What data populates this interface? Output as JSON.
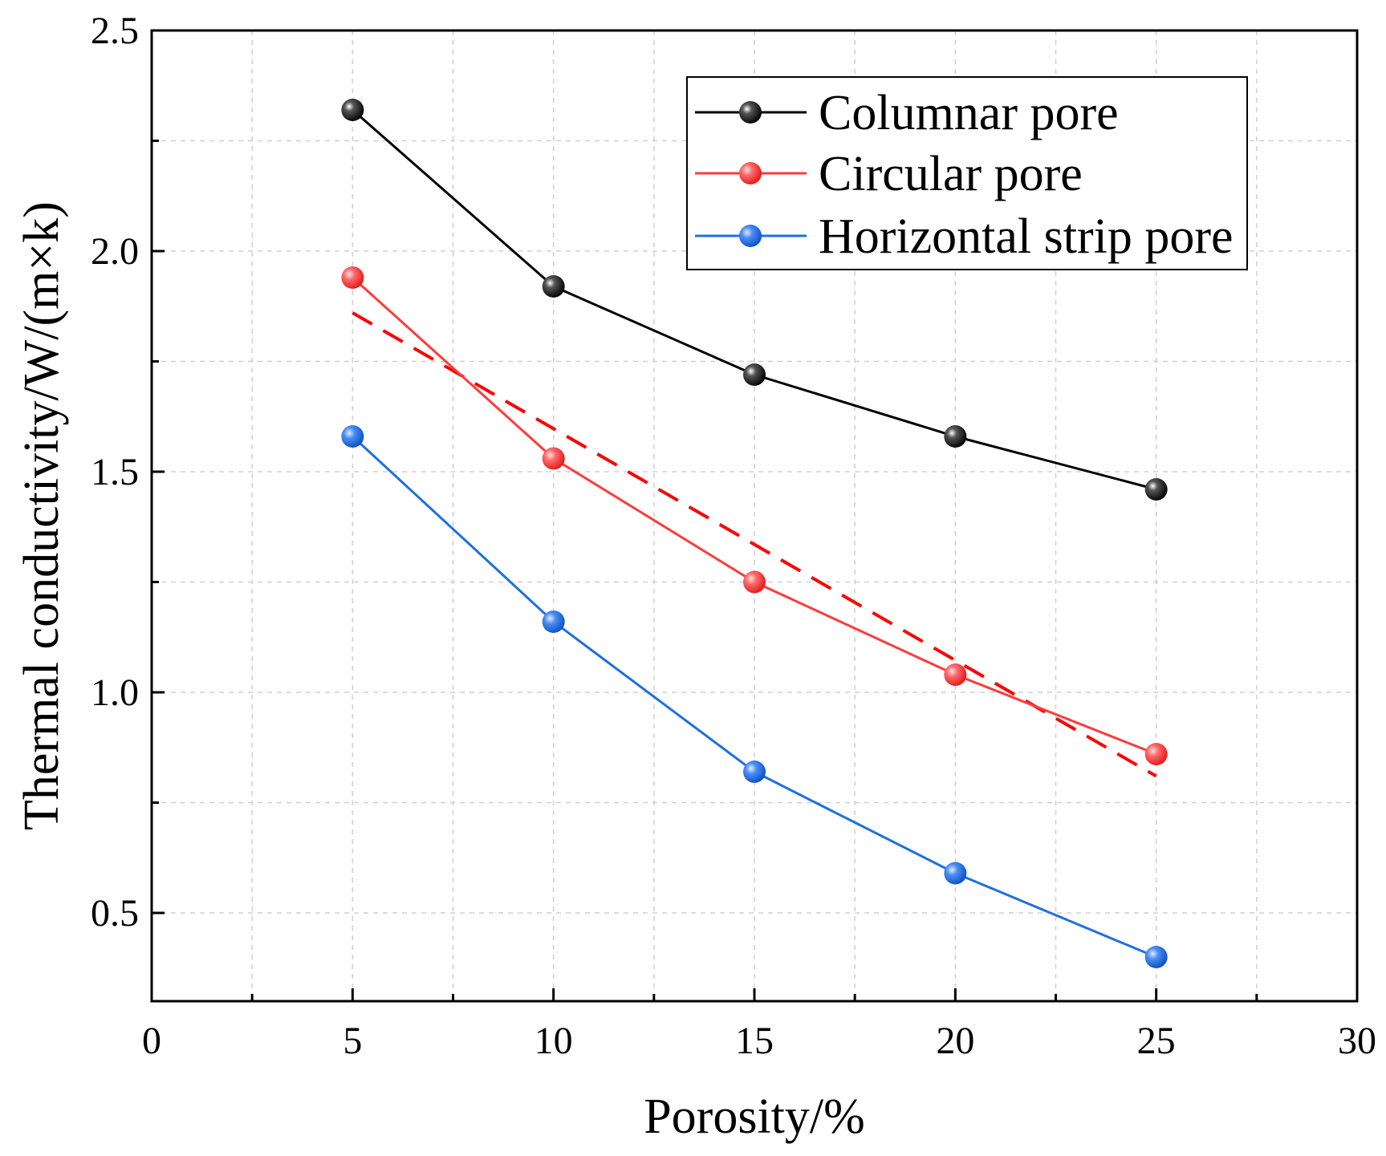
{
  "chart_data": {
    "type": "line",
    "title": "",
    "xlabel": "Porosity/%",
    "ylabel": "Thermal conductivity/W/(m×k)",
    "xlim": [
      0,
      30
    ],
    "ylim": [
      0.3,
      2.5
    ],
    "x_ticks": [
      0,
      5,
      10,
      15,
      20,
      25,
      30
    ],
    "x_tick_labels": [
      "0",
      "5",
      "10",
      "15",
      "20",
      "25",
      "30"
    ],
    "y_ticks": [
      0.5,
      1.0,
      1.5,
      2.0,
      2.5
    ],
    "y_tick_labels": [
      "0.5",
      "1.0",
      "1.5",
      "2.0",
      "2.5"
    ],
    "grid": true,
    "legend_position": "top-right",
    "x": [
      5,
      10,
      15,
      20,
      25
    ],
    "series": [
      {
        "name": "Columnar pore",
        "color": "#000000",
        "values": [
          2.32,
          1.92,
          1.72,
          1.58,
          1.46
        ]
      },
      {
        "name": "Circular pore",
        "color": "#ff3b3b",
        "values": [
          1.94,
          1.53,
          1.25,
          1.04,
          0.86
        ]
      },
      {
        "name": "Horizontal strip pore",
        "color": "#1f6fe0",
        "values": [
          1.58,
          1.16,
          0.82,
          0.59,
          0.4
        ]
      }
    ],
    "trendline": {
      "series": "Circular pore",
      "style": "dashed",
      "color": "#ff0000",
      "x": [
        5,
        25
      ],
      "values": [
        1.86,
        0.81
      ]
    }
  }
}
